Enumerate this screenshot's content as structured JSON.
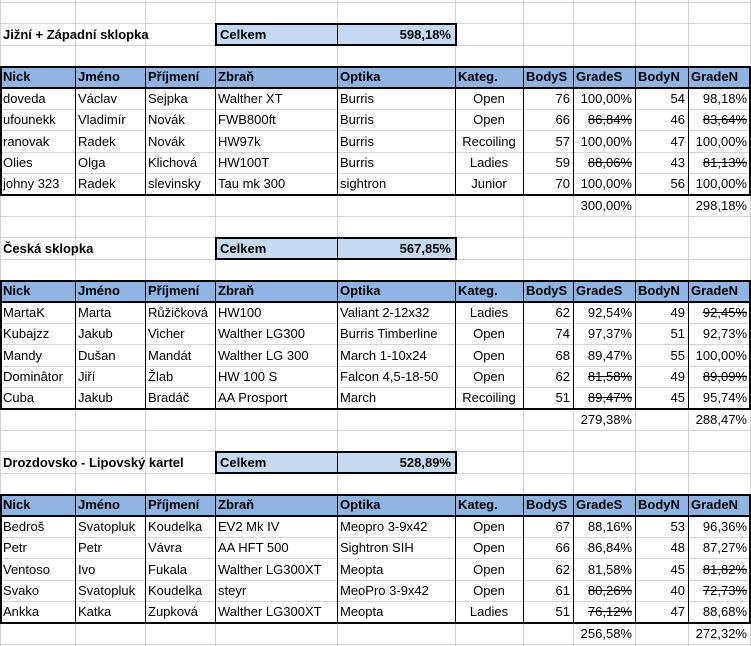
{
  "sections": [
    {
      "title": "Jižní + Západní sklopka",
      "total_label": "Celkem",
      "total": "598,18%",
      "columns": [
        "Nick",
        "Jméno",
        "Příjmení",
        "Zbraň",
        "Optika",
        "Kateg.",
        "BodyS",
        "GradeS",
        "BodyN",
        "GradeN"
      ],
      "rows": [
        [
          "doveda",
          "Václav",
          "Sejpka",
          "Walther XT",
          "Burris",
          "Open",
          76,
          "100,00%",
          54,
          "98,18%"
        ],
        [
          "ufounekk",
          "Vladimír",
          "Novák",
          "FWB800ft",
          "Burris",
          "Open",
          66,
          {
            "text": "86,84%",
            "struck": true
          },
          46,
          {
            "text": "83,64%",
            "struck": true
          }
        ],
        [
          "ranovak",
          "Radek",
          "Novák",
          "HW97k",
          "Burris",
          "Recoiling",
          57,
          "100,00%",
          47,
          "100,00%"
        ],
        [
          "Olies",
          "Olga",
          "Klichová",
          "HW100T",
          "Burris",
          "Ladies",
          59,
          {
            "text": "88,06%",
            "struck": true
          },
          43,
          {
            "text": "81,13%",
            "struck": true
          }
        ],
        [
          "johny 323",
          "Radek",
          "slevinsky",
          "Tau mk 300",
          "sightron",
          "Junior",
          70,
          "100,00%",
          56,
          "100,00%"
        ]
      ],
      "totals": {
        "grade_s": "300,00%",
        "grade_n": "298,18%"
      }
    },
    {
      "title": "Česká sklopka",
      "total_label": "Celkem",
      "total": "567,85%",
      "columns": [
        "Nick",
        "Jméno",
        "Příjmení",
        "Zbraň",
        "Optika",
        "Kateg.",
        "BodyS",
        "GradeS",
        "BodyN",
        "GradeN"
      ],
      "rows": [
        [
          "MartaK",
          "Marta",
          "Růžičková",
          "HW100",
          "Valiant 2-12x32",
          "Ladies",
          62,
          "92,54%",
          49,
          {
            "text": "92,45%",
            "struck": true
          }
        ],
        [
          "Kubajzz",
          "Jakub",
          "Vicher",
          "Walther LG300",
          "Burris Timberline",
          "Open",
          74,
          "97,37%",
          51,
          "92,73%"
        ],
        [
          "Mandy",
          "Dušan",
          "Mandát",
          "Walther LG 300",
          "March 1-10x24",
          "Open",
          68,
          "89,47%",
          55,
          "100,00%"
        ],
        [
          "Dominâtor",
          "Jiří",
          "Žlab",
          "HW 100 S",
          "Falcon 4,5-18-50",
          "Open",
          62,
          {
            "text": "81,58%",
            "struck": true
          },
          49,
          {
            "text": "89,09%",
            "struck": true
          }
        ],
        [
          "Cuba",
          "Jakub",
          "Bradáč",
          "AA Prosport",
          "March",
          "Recoiling",
          51,
          {
            "text": "89,47%",
            "struck": true
          },
          45,
          "95,74%"
        ]
      ],
      "totals": {
        "grade_s": "279,38%",
        "grade_n": "288,47%"
      }
    },
    {
      "title": "Drozdovsko - Lipovský kartel",
      "total_label": "Celkem",
      "total": "528,89%",
      "columns": [
        "Nick",
        "Jméno",
        "Příjmení",
        "Zbraň",
        "Optika",
        "Kateg.",
        "BodyS",
        "GradeS",
        "BodyN",
        "GradeN"
      ],
      "rows": [
        [
          "Bedroš",
          "Svatopluk",
          "Koudelka",
          "EV2 Mk IV",
          "Meopro 3-9x42",
          "Open",
          67,
          "88,16%",
          53,
          "96,36%"
        ],
        [
          "Petr",
          "Petr",
          "Vávra",
          "AA HFT 500",
          "Sightron SIH",
          "Open",
          66,
          "86,84%",
          48,
          "87,27%"
        ],
        [
          "Ventoso",
          "Ivo",
          "Fukala",
          "Walther LG300XT",
          "Meopta",
          "Open",
          62,
          "81,58%",
          45,
          {
            "text": "81,82%",
            "struck": true
          }
        ],
        [
          "Svako",
          "Svatopluk",
          "Koudelka",
          "steyr",
          "MeoPro 3-9x42",
          "Open",
          61,
          {
            "text": "80,26%",
            "struck": true
          },
          40,
          {
            "text": "72,73%",
            "struck": true
          }
        ],
        [
          "Ankka",
          "Katka",
          "Zupková",
          "Walther LG300XT",
          "Meopta",
          "Ladies",
          51,
          {
            "text": "76,12%",
            "struck": true
          },
          47,
          "88,68%"
        ]
      ],
      "totals": {
        "grade_s": "256,58%",
        "grade_n": "272,32%"
      }
    }
  ]
}
